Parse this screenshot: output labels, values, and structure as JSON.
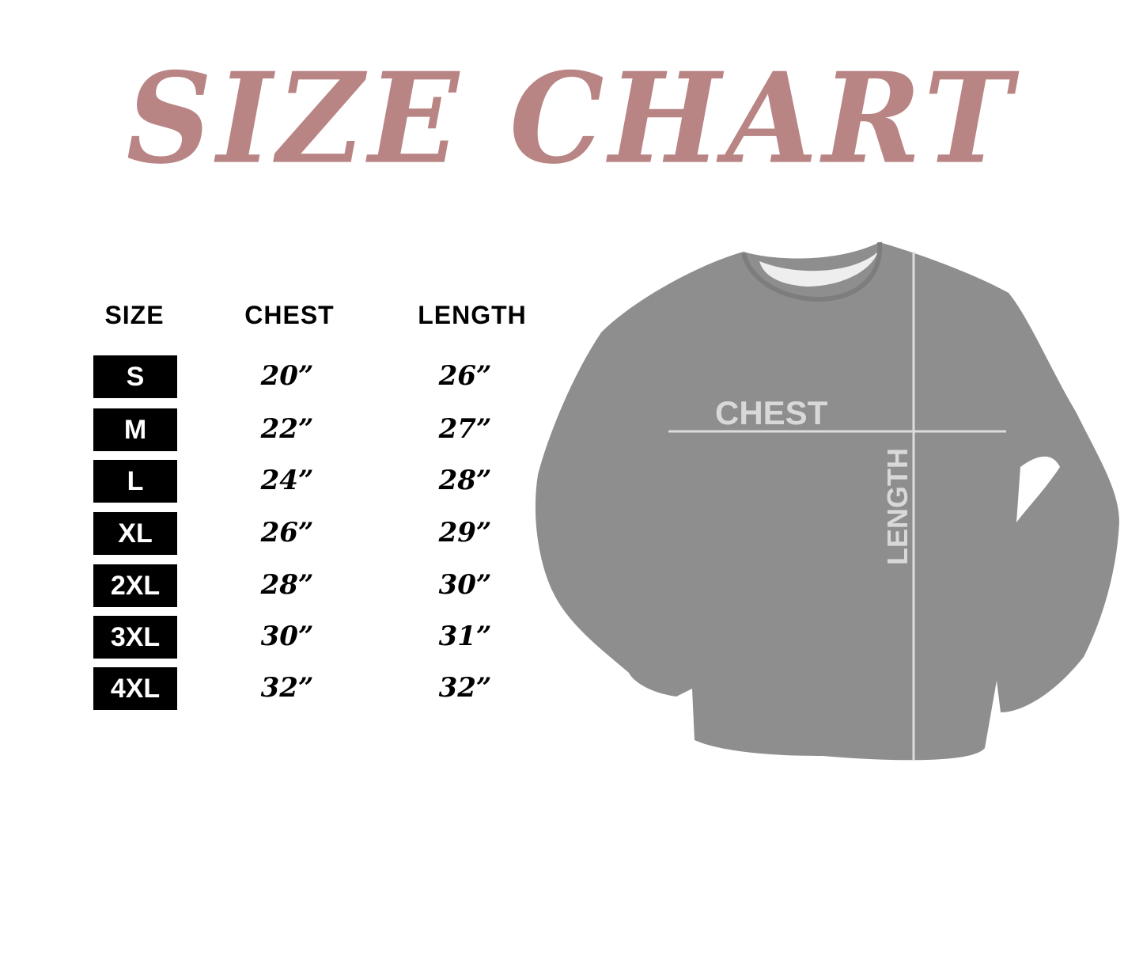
{
  "title": "SIZE CHART",
  "title_color": "#b98584",
  "headers": {
    "size": "SIZE",
    "chest": "CHEST",
    "length": "LENGTH"
  },
  "rows": [
    {
      "size": "S",
      "chest": "20”",
      "length": "26”"
    },
    {
      "size": "M",
      "chest": "22”",
      "length": "27”"
    },
    {
      "size": "L",
      "chest": "24”",
      "length": "28”"
    },
    {
      "size": "XL",
      "chest": "26”",
      "length": "29”"
    },
    {
      "size": "2XL",
      "chest": "28”",
      "length": "30”"
    },
    {
      "size": "3XL",
      "chest": "30”",
      "length": "31”"
    },
    {
      "size": "4XL",
      "chest": "32”",
      "length": "32”"
    }
  ],
  "garment": {
    "chest_label": "CHEST",
    "length_label": "LENGTH",
    "color": "#8e8e8e"
  }
}
